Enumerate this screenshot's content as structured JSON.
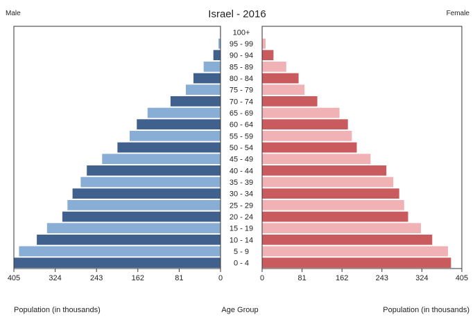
{
  "chart_data": {
    "type": "bar",
    "subtype": "population-pyramid",
    "title": "Israel - 2016",
    "left_label": "Male",
    "right_label": "Female",
    "xlabel_left": "Population (in thousands)",
    "xlabel_center": "Age Group",
    "xlabel_right": "Population (in thousands)",
    "xlim": [
      0,
      405
    ],
    "ticks_left": [
      "405",
      "324",
      "243",
      "162",
      "81",
      "0"
    ],
    "ticks_right": [
      "0",
      "81",
      "162",
      "243",
      "324",
      "405"
    ],
    "categories": [
      "100+",
      "95 - 99",
      "90 - 94",
      "85 - 89",
      "80 - 84",
      "75 - 79",
      "70 - 74",
      "65 - 69",
      "60 - 64",
      "55 - 59",
      "50 - 54",
      "45 - 49",
      "40 - 44",
      "35 - 39",
      "30 - 34",
      "25 - 29",
      "20 - 24",
      "15 - 19",
      "10 - 14",
      "5 - 9",
      "0 - 4"
    ],
    "series": [
      {
        "name": "Male",
        "values": [
          0.5,
          4,
          14,
          33,
          53,
          68,
          98,
          143,
          164,
          178,
          202,
          232,
          262,
          274,
          290,
          300,
          310,
          340,
          360,
          395,
          405
        ]
      },
      {
        "name": "Female",
        "values": [
          0.5,
          7,
          23,
          49,
          74,
          86,
          112,
          157,
          174,
          182,
          192,
          220,
          252,
          266,
          278,
          288,
          296,
          322,
          345,
          377,
          383
        ]
      }
    ],
    "colors": {
      "male_dark": "#40618e",
      "male_light": "#89aed6",
      "female_dark": "#c95a5d",
      "female_light": "#f0b2b4",
      "axis": "#333333"
    },
    "grid": false
  }
}
